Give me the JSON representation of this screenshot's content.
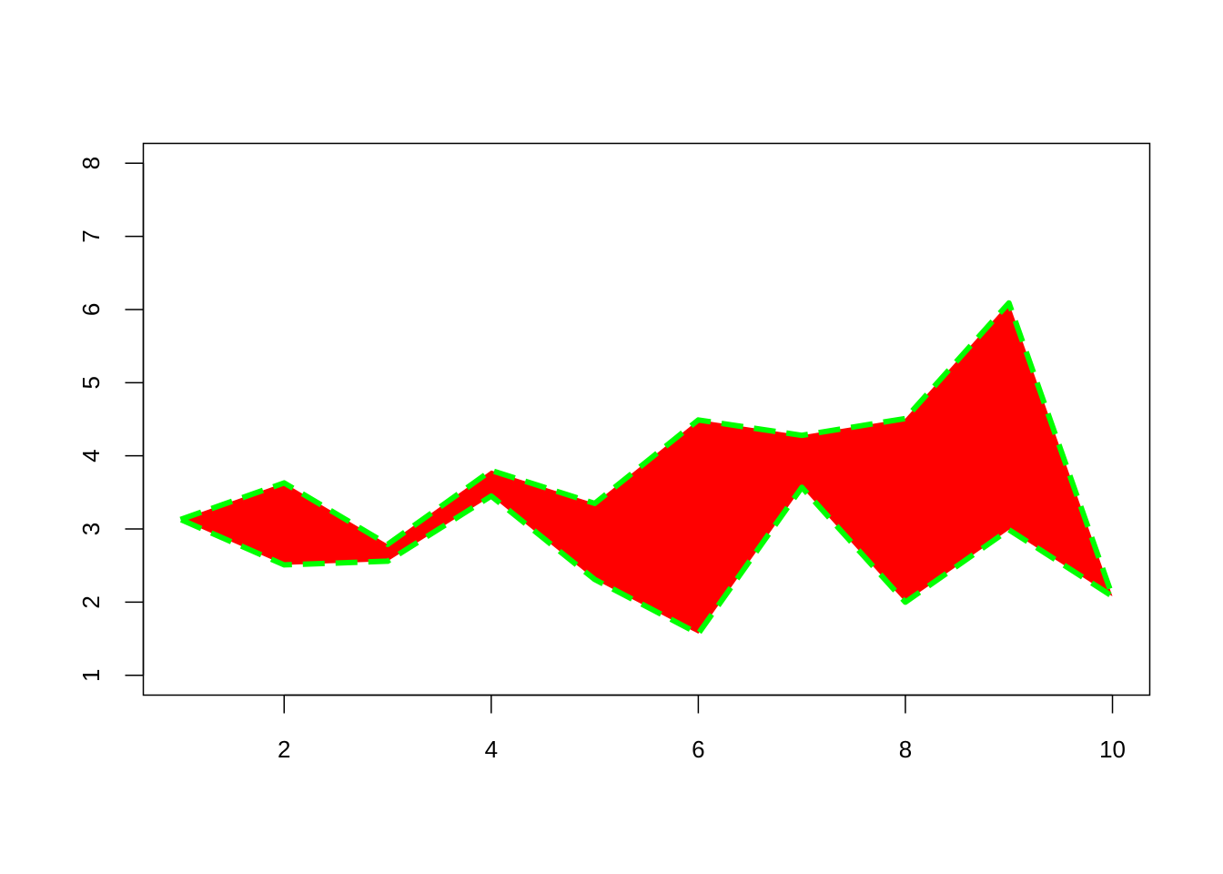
{
  "chart_data": {
    "type": "area",
    "title": "",
    "xlabel": "",
    "ylabel": "",
    "xlim": [
      0.64,
      10.36
    ],
    "ylim": [
      0.73,
      8.27
    ],
    "x_ticks": [
      2,
      4,
      6,
      8,
      10
    ],
    "y_ticks": [
      1,
      2,
      3,
      4,
      5,
      6,
      7,
      8
    ],
    "x_tick_labels": [
      "2",
      "4",
      "6",
      "8",
      "10"
    ],
    "y_tick_labels": [
      "1",
      "2",
      "3",
      "4",
      "5",
      "6",
      "7",
      "8"
    ],
    "grid": false,
    "x": [
      1,
      2,
      3,
      4,
      5,
      6,
      7,
      8,
      9,
      10
    ],
    "upper": [
      3.13,
      3.63,
      2.79,
      3.8,
      3.35,
      4.49,
      4.28,
      4.51,
      6.09,
      2.08
    ],
    "lower": [
      3.13,
      2.51,
      2.56,
      3.45,
      2.31,
      1.57,
      3.57,
      2.0,
      2.99,
      2.08
    ],
    "fill_color": "#FF0000",
    "border_color": "#00FF00",
    "border_style": "dashed"
  }
}
